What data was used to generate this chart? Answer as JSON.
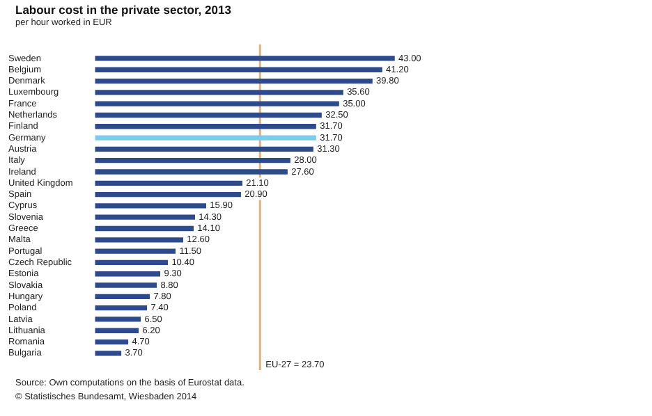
{
  "chart_data": {
    "type": "bar",
    "orientation": "horizontal",
    "title": "Labour cost in the private sector, 2013",
    "subtitle": "per hour worked in EUR",
    "categories": [
      "Sweden",
      "Belgium",
      "Denmark",
      "Luxembourg",
      "France",
      "Netherlands",
      "Finland",
      "Germany",
      "Austria",
      "Italy",
      "Ireland",
      "United Kingdom",
      "Spain",
      "Cyprus",
      "Slovenia",
      "Greece",
      "Malta",
      "Portugal",
      "Czech Republic",
      "Estonia",
      "Slovakia",
      "Hungary",
      "Poland",
      "Latvia",
      "Lithuania",
      "Romania",
      "Bulgaria"
    ],
    "values": [
      43.0,
      41.2,
      39.8,
      35.6,
      35.0,
      32.5,
      31.7,
      31.7,
      31.3,
      28.0,
      27.6,
      21.1,
      20.9,
      15.9,
      14.3,
      14.1,
      12.6,
      11.5,
      10.4,
      9.3,
      8.8,
      7.8,
      7.4,
      6.5,
      6.2,
      4.7,
      3.7
    ],
    "value_labels": [
      "43.00",
      "41.20",
      "39.80",
      "35.60",
      "35.00",
      "32.50",
      "31.70",
      "31.70",
      "31.30",
      "28.00",
      "27.60",
      "21.10",
      "20.90",
      "15.90",
      "14.30",
      "14.10",
      "12.60",
      "11.50",
      "10.40",
      "9.30",
      "8.80",
      "7.80",
      "7.40",
      "6.50",
      "6.20",
      "4.70",
      "3.70"
    ],
    "colors": [
      "#2c4a8c",
      "#2c4a8c",
      "#2c4a8c",
      "#2c4a8c",
      "#2c4a8c",
      "#2c4a8c",
      "#2c4a8c",
      "#7ccbe8",
      "#2c4a8c",
      "#2c4a8c",
      "#2c4a8c",
      "#2c4a8c",
      "#2c4a8c",
      "#2c4a8c",
      "#2c4a8c",
      "#2c4a8c",
      "#2c4a8c",
      "#2c4a8c",
      "#2c4a8c",
      "#2c4a8c",
      "#2c4a8c",
      "#2c4a8c",
      "#2c4a8c",
      "#2c4a8c",
      "#2c4a8c",
      "#2c4a8c",
      "#2c4a8c"
    ],
    "tick_labels": "y",
    "ref_lines": [
      {
        "axis": "x",
        "value": 23.7,
        "label": "EU-27 = 23.70",
        "color": "#e0b080"
      }
    ],
    "annotations": [
      "Source: Own computations on the basis of Eurostat data.",
      "© Statistisches Bundesamt, Wiesbaden 2014"
    ]
  }
}
